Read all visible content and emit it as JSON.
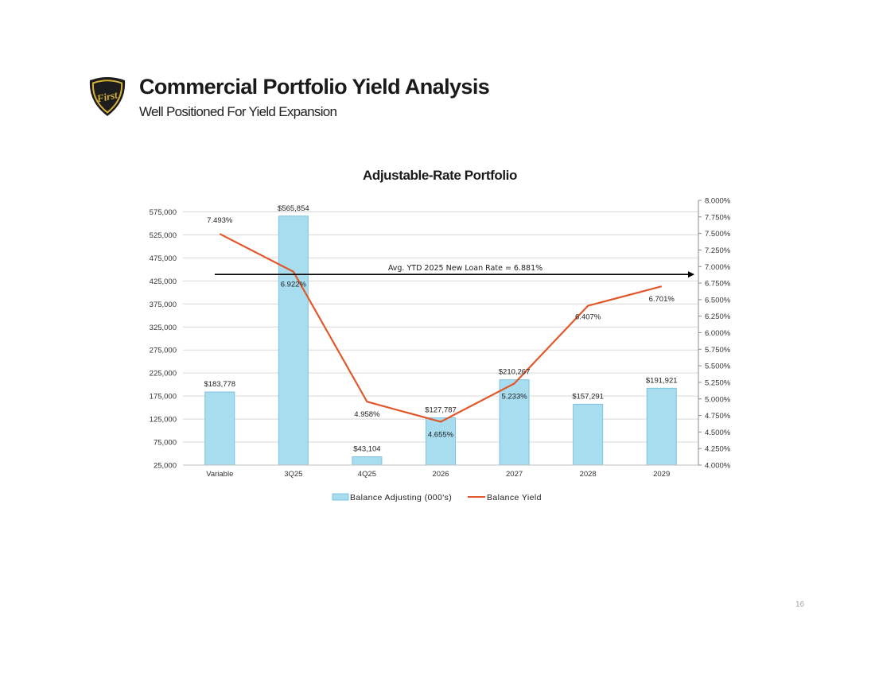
{
  "header": {
    "title": "Commercial Portfolio Yield Analysis",
    "subtitle": "Well Positioned For Yield Expansion",
    "logo_text": "First"
  },
  "page_number": "16",
  "colors": {
    "bar": "#a8dcef",
    "bar_edge": "#7cc4e0",
    "line": "#e0582b",
    "arrow": "#000000",
    "logo_gold": "#d6b13a"
  },
  "chart_data": {
    "type": "bar",
    "title": "Adjustable-Rate Portfolio",
    "categories": [
      "Variable",
      "3Q25",
      "4Q25",
      "2026",
      "2027",
      "2028",
      "2029"
    ],
    "series": [
      {
        "name": "Balance Adjusting (000's)",
        "type": "bar",
        "axis": "left",
        "values": [
          183778,
          565854,
          43104,
          127787,
          210267,
          157291,
          191921
        ],
        "labels": [
          "$183,778",
          "$565,854",
          "$43,104",
          "$127,787",
          "$210,267",
          "$157,291",
          "$191,921"
        ]
      },
      {
        "name": "Balance Yield",
        "type": "line",
        "axis": "right",
        "values": [
          7.493,
          6.922,
          4.958,
          4.655,
          5.233,
          6.407,
          6.701
        ],
        "labels": [
          "7.493%",
          "6.922%",
          "4.958%",
          "4.655%",
          "5.233%",
          "6.407%",
          "6.701%"
        ]
      }
    ],
    "y_left": {
      "ylim": [
        25000,
        600000
      ],
      "ticks": [
        25000,
        75000,
        125000,
        175000,
        225000,
        275000,
        325000,
        375000,
        425000,
        475000,
        525000,
        575000
      ],
      "tick_labels": [
        "25,000",
        "75,000",
        "125,000",
        "175,000",
        "225,000",
        "275,000",
        "325,000",
        "375,000",
        "425,000",
        "475,000",
        "525,000",
        "575,000"
      ]
    },
    "y_right": {
      "ylim": [
        4.0,
        8.0
      ],
      "ticks": [
        4.0,
        4.25,
        4.5,
        4.75,
        5.0,
        5.25,
        5.5,
        5.75,
        6.0,
        6.25,
        6.5,
        6.75,
        7.0,
        7.25,
        7.5,
        7.75,
        8.0
      ],
      "tick_labels": [
        "4.000%",
        "4.250%",
        "4.500%",
        "4.750%",
        "5.000%",
        "5.250%",
        "5.500%",
        "5.750%",
        "6.000%",
        "6.250%",
        "6.500%",
        "6.750%",
        "7.000%",
        "7.250%",
        "7.500%",
        "7.750%",
        "8.000%"
      ]
    },
    "reference_line": {
      "axis": "right",
      "value": 6.881,
      "label": "Avg. YTD 2025 New Loan Rate = 6.881%"
    },
    "grid": true,
    "legend": "bottom-center"
  }
}
